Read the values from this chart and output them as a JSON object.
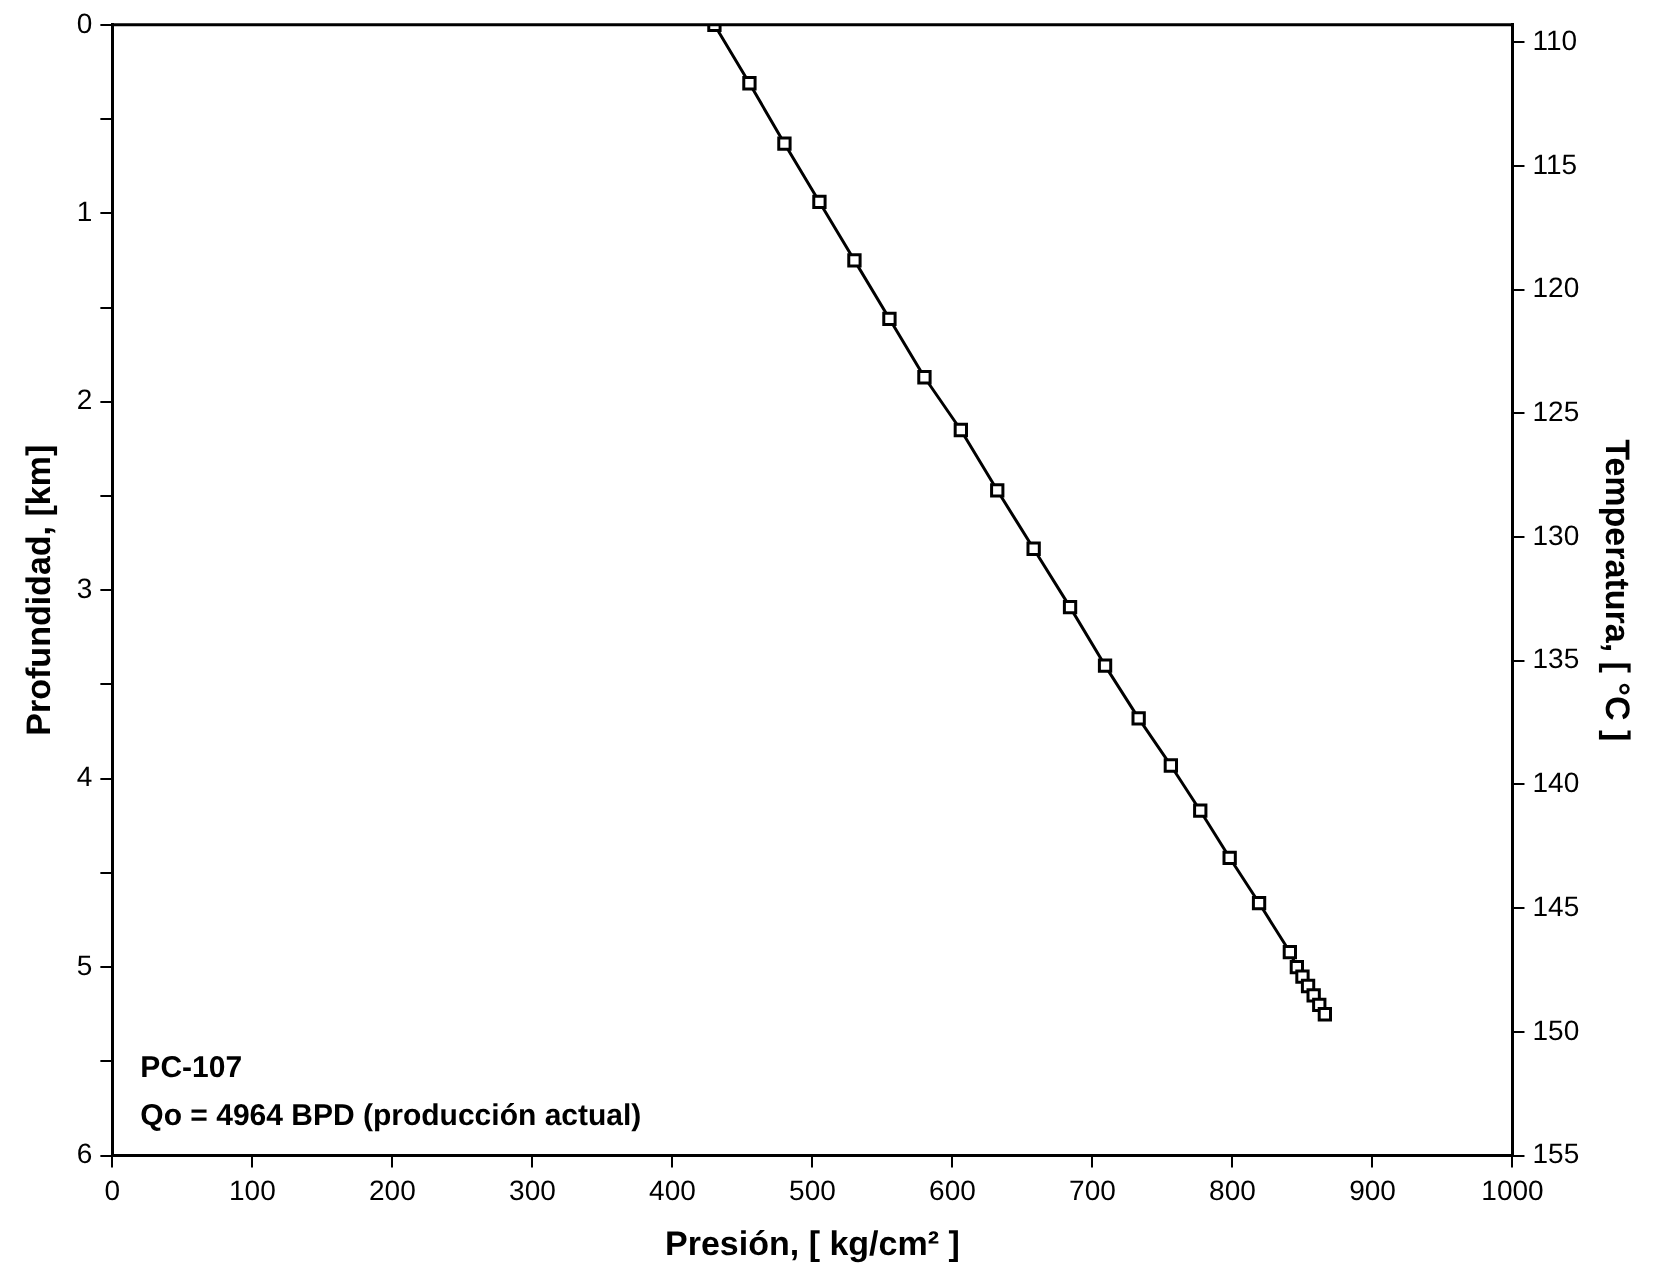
{
  "chart_data": {
    "type": "line",
    "xlabel": "Presión, [ kg/cm² ]",
    "ylabel": "Profundidad, [km]",
    "y2label": "Temperatura, [ °C ]",
    "annotations": [
      "PC-107",
      "Qo = 4964 BPD (producción actual)"
    ],
    "series": [
      {
        "color": "#000000",
        "x": [
          430,
          455,
          480,
          505,
          530,
          555,
          580,
          606,
          632,
          658,
          684,
          709,
          733,
          756,
          777,
          798,
          819,
          841,
          846,
          850,
          854,
          858,
          862,
          866
        ],
        "values": [
          0,
          0.31,
          0.63,
          0.94,
          1.25,
          1.56,
          1.87,
          2.15,
          2.47,
          2.78,
          3.09,
          3.4,
          3.68,
          3.93,
          4.17,
          4.42,
          4.66,
          4.92,
          5.0,
          5.05,
          5.1,
          5.15,
          5.2,
          5.25
        ]
      }
    ],
    "xlim": [
      0,
      1000
    ],
    "xticks": [
      0,
      100,
      200,
      300,
      400,
      500,
      600,
      700,
      800,
      900,
      1000
    ],
    "ylim": [
      6,
      0
    ],
    "yticks": [
      0,
      {
        "value": 0.5,
        "label": null
      },
      1,
      {
        "value": 1.5,
        "label": null
      },
      2,
      {
        "value": 2.5,
        "label": null
      },
      3,
      {
        "value": 3.5,
        "label": null
      },
      4,
      {
        "value": 4.5,
        "label": null
      },
      5,
      {
        "value": 5.5,
        "label": null
      },
      6
    ],
    "y2lim": [
      155,
      109.3
    ],
    "y2ticks": [
      110,
      115,
      120,
      125,
      130,
      135,
      140,
      145,
      150,
      155
    ],
    "marker": "square",
    "line_style": "solid"
  }
}
